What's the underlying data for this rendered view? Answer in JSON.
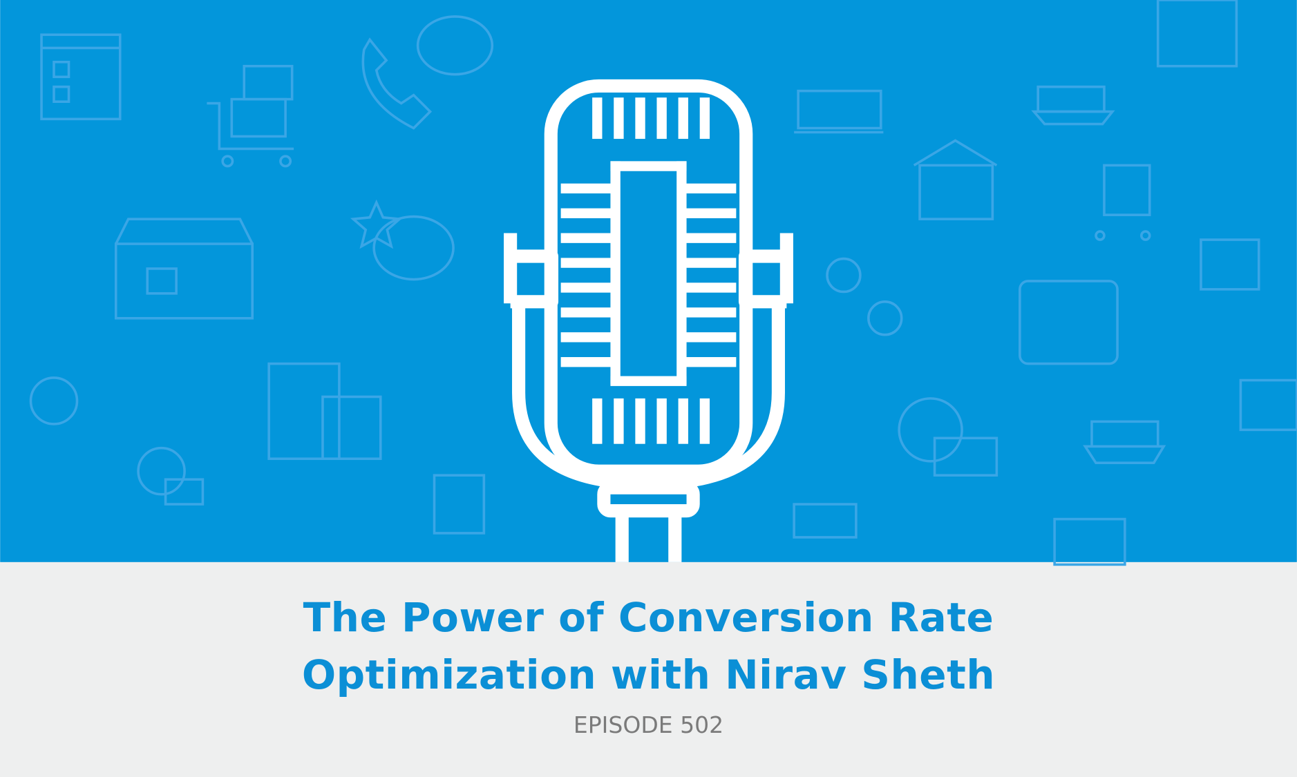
{
  "title_lines": [
    "The Power of Conversion Rate",
    "Optimization with Nirav Sheth"
  ],
  "episode": "EPISODE 502"
}
